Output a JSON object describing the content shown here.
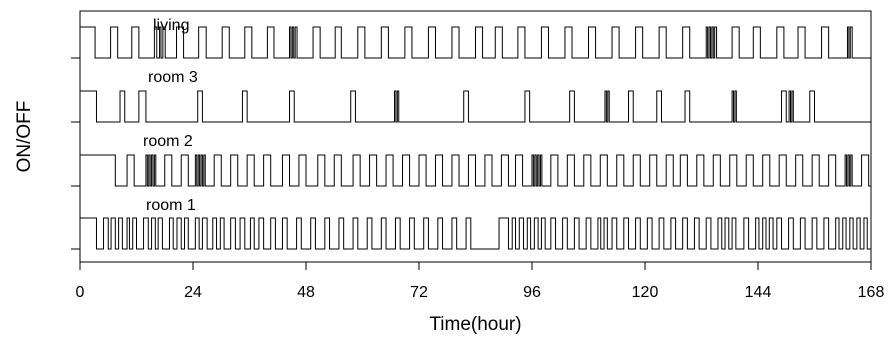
{
  "chart_data": {
    "type": "line",
    "title": "",
    "xlabel": "Time(hour)",
    "ylabel": "ON/OFF",
    "xlim": [
      0,
      168
    ],
    "x_ticks": [
      0,
      24,
      48,
      72,
      96,
      120,
      144,
      168
    ],
    "grid": false,
    "style": "step",
    "series": [
      {
        "name": "living",
        "on_intervals": [
          [
            0,
            3.2
          ],
          [
            6.5,
            8
          ],
          [
            11,
            12.5
          ],
          [
            15.8,
            16.3
          ],
          [
            16.9,
            17.2
          ],
          [
            17.6,
            18.1
          ],
          [
            20.5,
            22
          ],
          [
            25.2,
            26.8
          ],
          [
            30.2,
            31.7
          ],
          [
            35,
            36.5
          ],
          [
            39.8,
            41.2
          ],
          [
            44.5,
            44.8
          ],
          [
            45.1,
            45.4
          ],
          [
            45.7,
            46.1
          ],
          [
            49.5,
            51
          ],
          [
            54.2,
            55.5
          ],
          [
            59,
            60.5
          ],
          [
            64,
            65.5
          ],
          [
            69,
            70.5
          ],
          [
            74,
            75.5
          ],
          [
            79,
            80.5
          ],
          [
            84,
            85.5
          ],
          [
            88.2,
            89.7
          ],
          [
            93,
            94.5
          ],
          [
            98,
            99.5
          ],
          [
            103,
            104.5
          ],
          [
            108,
            109.5
          ],
          [
            113,
            114.5
          ],
          [
            118,
            119.5
          ],
          [
            123,
            124.5
          ],
          [
            128,
            129.5
          ],
          [
            133,
            133.3
          ],
          [
            133.6,
            133.9
          ],
          [
            134.2,
            134.5
          ],
          [
            134.8,
            135.2
          ],
          [
            138.5,
            140
          ],
          [
            143,
            144.5
          ],
          [
            148,
            149.5
          ],
          [
            152.5,
            154
          ],
          [
            157.5,
            159
          ],
          [
            163,
            163.3
          ],
          [
            163.6,
            164
          ]
        ]
      },
      {
        "name": "room 3",
        "on_intervals": [
          [
            0,
            3.5
          ],
          [
            8.5,
            9.5
          ],
          [
            12.5,
            14
          ],
          [
            25,
            26
          ],
          [
            34.5,
            35.5
          ],
          [
            44.5,
            45.5
          ],
          [
            57.5,
            58.5
          ],
          [
            66.8,
            67.1
          ],
          [
            67.4,
            67.7
          ],
          [
            81.5,
            82.5
          ],
          [
            94.5,
            95.5
          ],
          [
            104,
            105
          ],
          [
            111.5,
            111.8
          ],
          [
            112.1,
            112.4
          ],
          [
            116.5,
            117.5
          ],
          [
            122.5,
            123.5
          ],
          [
            128.5,
            129.5
          ],
          [
            138.5,
            138.8
          ],
          [
            139.1,
            139.4
          ],
          [
            149,
            150
          ],
          [
            150.6,
            150.9
          ],
          [
            151.2,
            151.5
          ],
          [
            155,
            156
          ]
        ]
      },
      {
        "name": "room 2",
        "on_intervals": [
          [
            0,
            7.5
          ],
          [
            10,
            11.5
          ],
          [
            14,
            14.3
          ],
          [
            14.6,
            14.9
          ],
          [
            15.2,
            15.5
          ],
          [
            15.8,
            16.1
          ],
          [
            18,
            19.5
          ],
          [
            21.5,
            23
          ],
          [
            24.5,
            24.8
          ],
          [
            25.1,
            25.4
          ],
          [
            25.7,
            26
          ],
          [
            26.3,
            26.6
          ],
          [
            28.5,
            30
          ],
          [
            32,
            33.5
          ],
          [
            35.5,
            37
          ],
          [
            39,
            40.5
          ],
          [
            43,
            44.5
          ],
          [
            46.5,
            48
          ],
          [
            50.5,
            52
          ],
          [
            54,
            55.5
          ],
          [
            58,
            59.5
          ],
          [
            61.5,
            63
          ],
          [
            65,
            66.5
          ],
          [
            68.5,
            70
          ],
          [
            72,
            73.5
          ],
          [
            75.5,
            77
          ],
          [
            79,
            80.5
          ],
          [
            82.5,
            84
          ],
          [
            86,
            87.5
          ],
          [
            89.5,
            91
          ],
          [
            92.5,
            94
          ],
          [
            96,
            96.3
          ],
          [
            96.6,
            96.9
          ],
          [
            97.2,
            97.5
          ],
          [
            97.8,
            98.1
          ],
          [
            100,
            101.5
          ],
          [
            103.5,
            105
          ],
          [
            107,
            108.5
          ],
          [
            110.5,
            112
          ],
          [
            114,
            115.5
          ],
          [
            117.5,
            119
          ],
          [
            121,
            122.5
          ],
          [
            124.5,
            126
          ],
          [
            127.5,
            129
          ],
          [
            131,
            132.5
          ],
          [
            134.5,
            136
          ],
          [
            138,
            139.5
          ],
          [
            141.5,
            143
          ],
          [
            145,
            146.5
          ],
          [
            148.5,
            150
          ],
          [
            152,
            153.5
          ],
          [
            155.5,
            157
          ],
          [
            159,
            160.5
          ],
          [
            162.5,
            162.8
          ],
          [
            163.1,
            163.4
          ],
          [
            163.7,
            164
          ],
          [
            166,
            167.5
          ]
        ]
      },
      {
        "name": "room 1",
        "on_intervals": [
          [
            0,
            3.5
          ],
          [
            5,
            6
          ],
          [
            6.6,
            7.5
          ],
          [
            8.2,
            9
          ],
          [
            10,
            10.5
          ],
          [
            11.2,
            12
          ],
          [
            13.5,
            14.5
          ],
          [
            15.2,
            16
          ],
          [
            16.6,
            17.5
          ],
          [
            19,
            19.8
          ],
          [
            20.6,
            21.5
          ],
          [
            22.2,
            23
          ],
          [
            24.5,
            25.3
          ],
          [
            26,
            27
          ],
          [
            28.2,
            29
          ],
          [
            29.8,
            30.6
          ],
          [
            32,
            33
          ],
          [
            34,
            35
          ],
          [
            36.2,
            37
          ],
          [
            38,
            39
          ],
          [
            40.5,
            41.5
          ],
          [
            43,
            44
          ],
          [
            46,
            47
          ],
          [
            49,
            50
          ],
          [
            52,
            53
          ],
          [
            55,
            56
          ],
          [
            58,
            59
          ],
          [
            61,
            62
          ],
          [
            64,
            65
          ],
          [
            67,
            68
          ],
          [
            70,
            71
          ],
          [
            73,
            74
          ],
          [
            76,
            77
          ],
          [
            79,
            80
          ],
          [
            82,
            83
          ],
          [
            89,
            91
          ],
          [
            91.8,
            92.5
          ],
          [
            93.3,
            94.2
          ],
          [
            95,
            95.7
          ],
          [
            96.5,
            97.3
          ],
          [
            98,
            98.8
          ],
          [
            100,
            101
          ],
          [
            102.5,
            103.5
          ],
          [
            105,
            106
          ],
          [
            107.5,
            108.5
          ],
          [
            110,
            110.6
          ],
          [
            111.3,
            112
          ],
          [
            113,
            114
          ],
          [
            115.5,
            116.5
          ],
          [
            118,
            119
          ],
          [
            120.5,
            121.5
          ],
          [
            123,
            124
          ],
          [
            125.5,
            126.5
          ],
          [
            128,
            129
          ],
          [
            130.5,
            131.5
          ],
          [
            133,
            134
          ],
          [
            135.5,
            136.3
          ],
          [
            137,
            137.8
          ],
          [
            138.5,
            139.3
          ],
          [
            141,
            142
          ],
          [
            143.5,
            144.2
          ],
          [
            145,
            145.7
          ],
          [
            146.4,
            147.2
          ],
          [
            148,
            149
          ],
          [
            150.5,
            151.5
          ],
          [
            153,
            154
          ],
          [
            155.5,
            156.5
          ],
          [
            158,
            159
          ],
          [
            160.5,
            161.2
          ],
          [
            162,
            162.7
          ],
          [
            163.5,
            164.2
          ],
          [
            165,
            165.7
          ],
          [
            166.5,
            167.2
          ]
        ]
      }
    ]
  }
}
